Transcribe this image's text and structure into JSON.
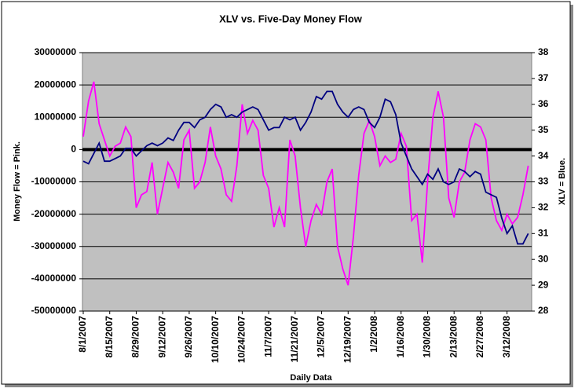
{
  "chart_data": {
    "type": "line",
    "title": "XLV vs. Five-Day Money Flow",
    "x_label": "Daily Data",
    "y_label": "Money Flow = Pink.",
    "y2_label": "XLV = Blue.",
    "categories": [
      "8/1/2007",
      null,
      null,
      null,
      null,
      "8/15/2007",
      null,
      null,
      null,
      null,
      "8/29/2007",
      null,
      null,
      null,
      null,
      "9/12/2007",
      null,
      null,
      null,
      null,
      "9/26/2007",
      null,
      null,
      null,
      null,
      "10/10/2007",
      null,
      null,
      null,
      null,
      "10/24/2007",
      null,
      null,
      null,
      null,
      "11/7/2007",
      null,
      null,
      null,
      null,
      "11/21/2007",
      null,
      null,
      null,
      null,
      "12/5/2007",
      null,
      null,
      null,
      null,
      "12/19/2007",
      null,
      null,
      null,
      null,
      "1/2/2008",
      null,
      null,
      null,
      null,
      "1/16/2008",
      null,
      null,
      null,
      null,
      "1/30/2008",
      null,
      null,
      null,
      null,
      "2/13/2008",
      null,
      null,
      null,
      null,
      "2/27/2008",
      null,
      null,
      null,
      null,
      "3/12/2008",
      null,
      null,
      null,
      null
    ],
    "series": [
      {
        "name": "Money Flow",
        "color": "#ff00ff",
        "axis": "y",
        "values": [
          4000000,
          15000000,
          21000000,
          8000000,
          3000000,
          -2000000,
          1000000,
          2000000,
          7000000,
          4000000,
          -18000000,
          -14000000,
          -13000000,
          -4000000,
          -20000000,
          -12000000,
          -4000000,
          -7000000,
          -12000000,
          3000000,
          6000000,
          -12000000,
          -10000000,
          -4000000,
          7000000,
          -2000000,
          -6000000,
          -14000000,
          -16000000,
          -5000000,
          14000000,
          5000000,
          9000000,
          6000000,
          -8000000,
          -12000000,
          -24000000,
          -18000000,
          -24000000,
          3000000,
          -2000000,
          -18000000,
          -30000000,
          -22000000,
          -17000000,
          -20000000,
          -10000000,
          -6000000,
          -30000000,
          -37000000,
          -42000000,
          -27000000,
          -8000000,
          5000000,
          9000000,
          4000000,
          -5000000,
          -2000000,
          -4000000,
          -3000000,
          5000000,
          1000000,
          -22000000,
          -20000000,
          -35000000,
          -10000000,
          10000000,
          18000000,
          10000000,
          -15000000,
          -21000000,
          -10000000,
          -7000000,
          3000000,
          8000000,
          7000000,
          3000000,
          -15000000,
          -22000000,
          -25000000,
          -20000000,
          -23000000,
          -21000000,
          -14000000,
          -5000000
        ]
      },
      {
        "name": "XLV",
        "color": "#000080",
        "axis": "y2",
        "values": [
          33.8,
          33.7,
          34.1,
          34.5,
          33.8,
          33.8,
          33.9,
          34.0,
          34.3,
          34.3,
          34.0,
          34.2,
          34.4,
          34.5,
          34.4,
          34.5,
          34.7,
          34.6,
          35.0,
          35.3,
          35.3,
          35.1,
          35.4,
          35.5,
          35.8,
          36.0,
          35.9,
          35.5,
          35.6,
          35.5,
          35.7,
          35.8,
          35.9,
          35.8,
          35.4,
          35.0,
          35.1,
          35.1,
          35.5,
          35.4,
          35.5,
          35.0,
          35.3,
          35.7,
          36.3,
          36.2,
          36.5,
          36.5,
          36.0,
          35.7,
          35.5,
          35.8,
          35.9,
          35.8,
          35.3,
          35.1,
          35.5,
          36.2,
          36.1,
          35.6,
          34.5,
          34.0,
          33.5,
          33.2,
          32.9,
          33.3,
          33.1,
          33.5,
          33.0,
          32.9,
          33.0,
          33.5,
          33.4,
          33.2,
          33.4,
          33.3,
          32.6,
          32.5,
          32.4,
          31.6,
          31.0,
          31.3,
          30.6,
          30.6,
          31.0
        ]
      }
    ],
    "ylim": [
      -50000000,
      30000000
    ],
    "yticks": [
      -50000000,
      -40000000,
      -30000000,
      -20000000,
      -10000000,
      0,
      10000000,
      20000000,
      30000000
    ],
    "y2lim": [
      28,
      38
    ],
    "y2ticks": [
      28,
      29,
      30,
      31,
      32,
      33,
      34,
      35,
      36,
      37,
      38
    ],
    "grid": true,
    "background": "#c0c0c0"
  }
}
